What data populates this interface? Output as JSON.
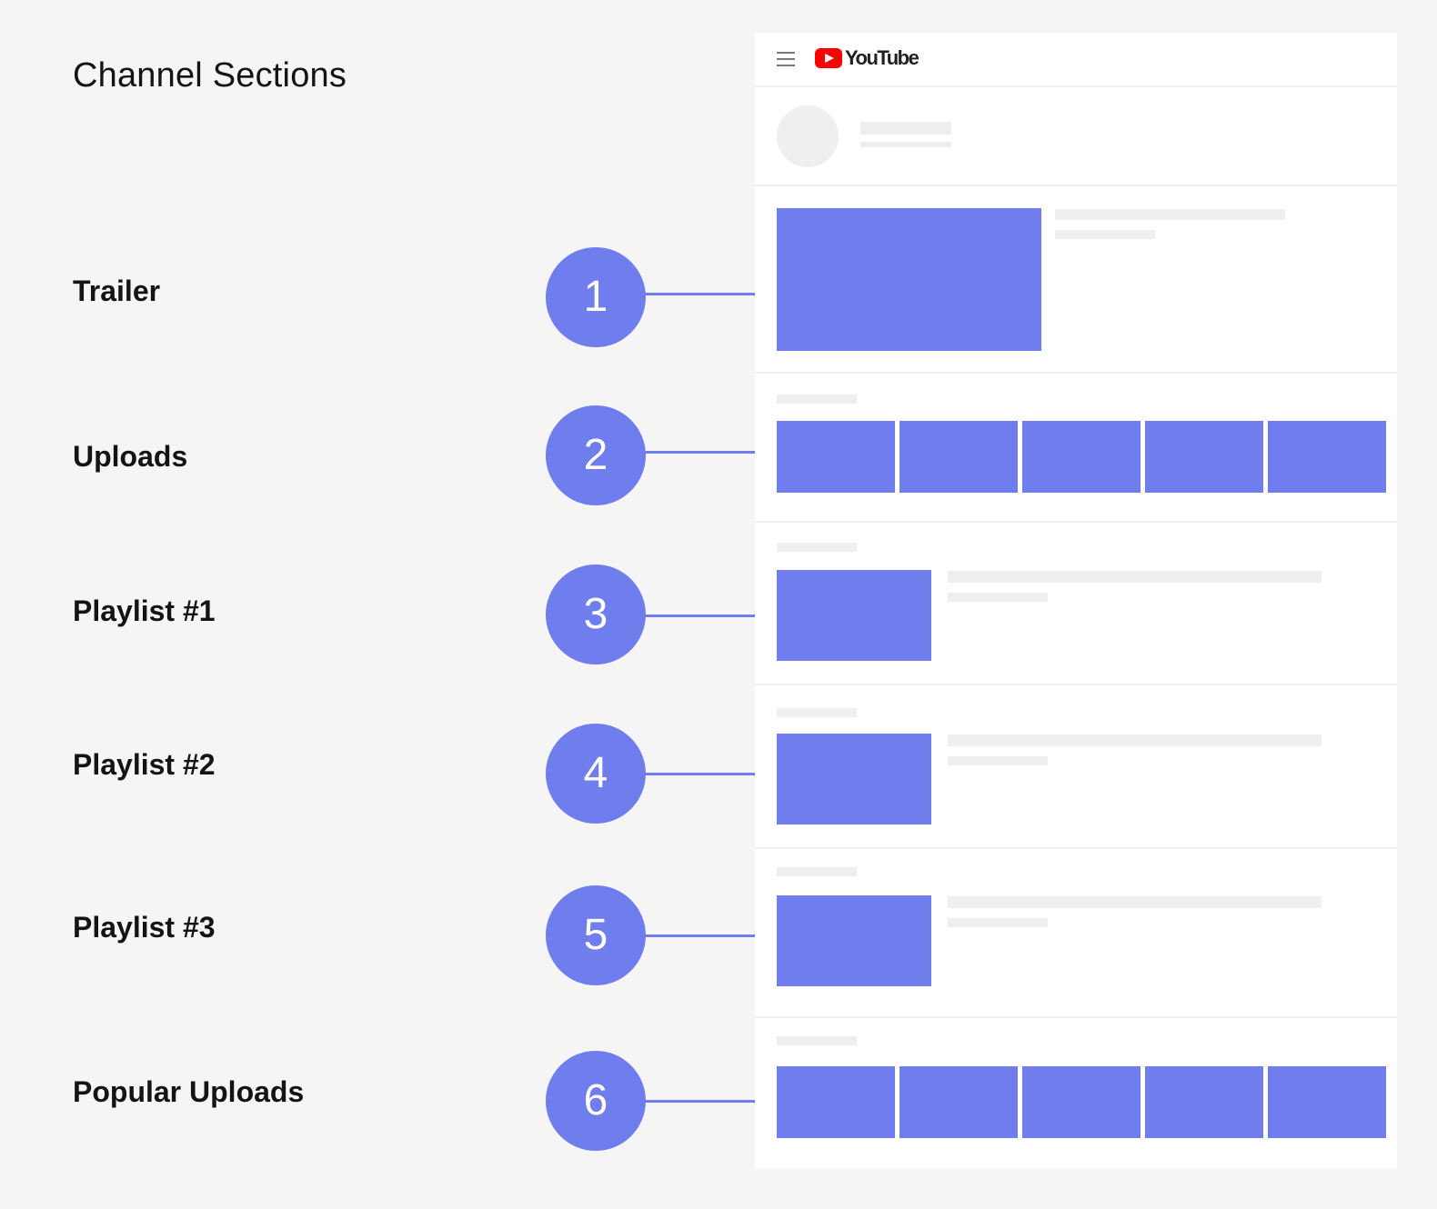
{
  "title": "Channel Sections",
  "sections": [
    {
      "number": "1",
      "label": "Trailer"
    },
    {
      "number": "2",
      "label": "Uploads"
    },
    {
      "number": "3",
      "label": "Playlist #1"
    },
    {
      "number": "4",
      "label": "Playlist #2"
    },
    {
      "number": "5",
      "label": "Playlist #3"
    },
    {
      "number": "6",
      "label": "Popular Uploads"
    }
  ],
  "mockup": {
    "brand": "YouTube",
    "menu_icon": "hamburger-menu-icon",
    "logo_icon": "youtube-logo-icon"
  },
  "colors": {
    "accent": "#707ded",
    "placeholder": "#efefef",
    "background": "#f5f5f5",
    "brand_red": "#ff0000"
  }
}
